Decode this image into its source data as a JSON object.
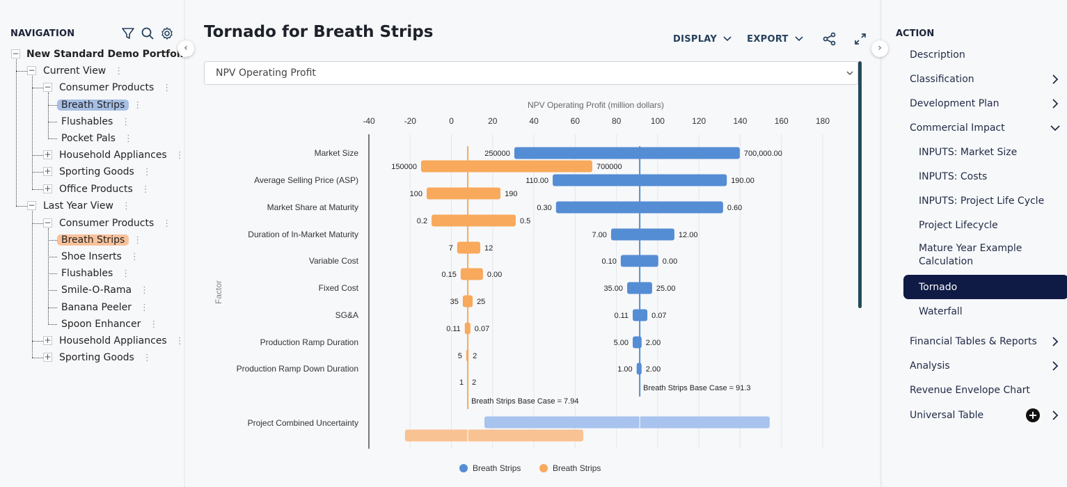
{
  "navigation": {
    "title": "NAVIGATION",
    "tools": [
      "filter-icon",
      "search-icon",
      "gear-icon"
    ],
    "tree": [
      {
        "label": "New Standard Demo Portfolio",
        "level": 0,
        "toggle": "minus",
        "bold": true
      },
      {
        "label": "Current View",
        "level": 1,
        "toggle": "minus"
      },
      {
        "label": "Consumer Products",
        "level": 2,
        "toggle": "minus"
      },
      {
        "label": "Breath Strips",
        "level": 3,
        "selected": "blue"
      },
      {
        "label": "Flushables",
        "level": 3
      },
      {
        "label": "Pocket Pals",
        "level": 3
      },
      {
        "label": "Household Appliances",
        "level": 2,
        "toggle": "plus"
      },
      {
        "label": "Sporting Goods",
        "level": 2,
        "toggle": "plus"
      },
      {
        "label": "Office Products",
        "level": 2,
        "toggle": "plus"
      },
      {
        "label": "Last Year View",
        "level": 1,
        "toggle": "minus"
      },
      {
        "label": "Consumer Products",
        "level": 2,
        "toggle": "minus"
      },
      {
        "label": "Breath Strips",
        "level": 3,
        "selected": "orange"
      },
      {
        "label": "Shoe Inserts",
        "level": 3
      },
      {
        "label": "Flushables",
        "level": 3
      },
      {
        "label": "Smile-O-Rama",
        "level": 3
      },
      {
        "label": "Banana Peeler",
        "level": 3
      },
      {
        "label": "Spoon Enhancer",
        "level": 3
      },
      {
        "label": "Household Appliances",
        "level": 2,
        "toggle": "plus"
      },
      {
        "label": "Sporting Goods",
        "level": 2,
        "toggle": "plus"
      }
    ]
  },
  "main": {
    "title": "Tornado for Breath Strips",
    "display_label": "DISPLAY",
    "export_label": "EXPORT",
    "metric_select": "NPV Operating Profit"
  },
  "action": {
    "title": "ACTION",
    "items": [
      {
        "label": "Description",
        "arrow": "none"
      },
      {
        "label": "Classification",
        "arrow": "right"
      },
      {
        "label": "Development Plan",
        "arrow": "right"
      },
      {
        "label": "Commercial Impact",
        "arrow": "down"
      },
      {
        "label": "INPUTS: Market Size",
        "sub": true
      },
      {
        "label": "INPUTS: Costs",
        "sub": true
      },
      {
        "label": "INPUTS: Project Life Cycle",
        "sub": true
      },
      {
        "label": "Project Lifecycle",
        "sub": true
      },
      {
        "label": "Mature Year Example Calculation",
        "sub": true
      },
      {
        "label": "Tornado",
        "sub": true,
        "active": true
      },
      {
        "label": "Waterfall",
        "sub": true
      },
      {
        "label": "Financial Tables & Reports",
        "arrow": "right"
      },
      {
        "label": "Analysis",
        "arrow": "right"
      },
      {
        "label": "Revenue Envelope Chart",
        "arrow": "none"
      },
      {
        "label": "Universal Table",
        "arrow": "right",
        "plus": true
      }
    ]
  },
  "colors": {
    "blue_series": "#548dd4",
    "orange_series": "#f8a95c",
    "blue_combined": "#a7c3ee",
    "orange_combined": "#f8c292",
    "active_action": "#0f1a45"
  },
  "chart_data": {
    "type": "bar",
    "subtype": "tornado",
    "title": "NPV Operating Profit (million dollars)",
    "xlabel": "NPV Operating Profit (million dollars)",
    "ylabel": "Factor",
    "xlim": [
      -40,
      180
    ],
    "xticks": [
      -40,
      -20,
      0,
      20,
      40,
      60,
      80,
      100,
      120,
      140,
      160,
      180
    ],
    "grid": true,
    "legend_position": "bottom",
    "categories": [
      "Market Size",
      "Average Selling Price (ASP)",
      "Market Share at Maturity",
      "Duration of In-Market Maturity",
      "Variable Cost",
      "Fixed Cost",
      "SG&A",
      "Production Ramp Duration",
      "Production Ramp Down Duration",
      "Project Combined Uncertainty"
    ],
    "series": [
      {
        "name": "Breath Strips",
        "color": "#548dd4",
        "base_case": 91.3,
        "base_case_label": "Breath Strips Base Case = 91.3",
        "ranges": [
          [
            30.5,
            139.8
          ],
          [
            49.1,
            133.5
          ],
          [
            50.7,
            131.7
          ],
          [
            77.4,
            108.1
          ],
          [
            82.1,
            100.3
          ],
          [
            85.2,
            97.3
          ],
          [
            87.9,
            95.0
          ],
          [
            87.9,
            92.2
          ],
          [
            89.8,
            92.2
          ],
          [
            16.0,
            154.3
          ]
        ],
        "low_labels": [
          "250000",
          "110.00",
          "0.30",
          "7.00",
          "0.10",
          "35.00",
          "0.11",
          "5.00",
          "1.00",
          ""
        ],
        "high_labels": [
          "700,000.00",
          "190.00",
          "0.60",
          "12.00",
          "0.00",
          "25.00",
          "0.07",
          "2.00",
          "2.00",
          ""
        ]
      },
      {
        "name": "Breath Strips",
        "color": "#f8a95c",
        "base_case": 7.94,
        "base_case_label": "Breath Strips Base Case = 7.94",
        "ranges": [
          [
            -14.7,
            68.3
          ],
          [
            -12.0,
            23.8
          ],
          [
            -9.6,
            31.2
          ],
          [
            2.8,
            14.0
          ],
          [
            4.5,
            15.3
          ],
          [
            5.5,
            10.3
          ],
          [
            6.5,
            9.2
          ],
          [
            7.2,
            8.3
          ],
          [
            7.94,
            7.94
          ],
          [
            -22.5,
            63.9
          ]
        ],
        "low_labels": [
          "150000",
          "100",
          "0.2",
          "7",
          "0.15",
          "35",
          "0.11",
          "5",
          "1",
          ""
        ],
        "high_labels": [
          "700000",
          "190",
          "0.5",
          "12",
          "0.00",
          "25",
          "0.07",
          "2",
          "2",
          ""
        ]
      }
    ]
  }
}
